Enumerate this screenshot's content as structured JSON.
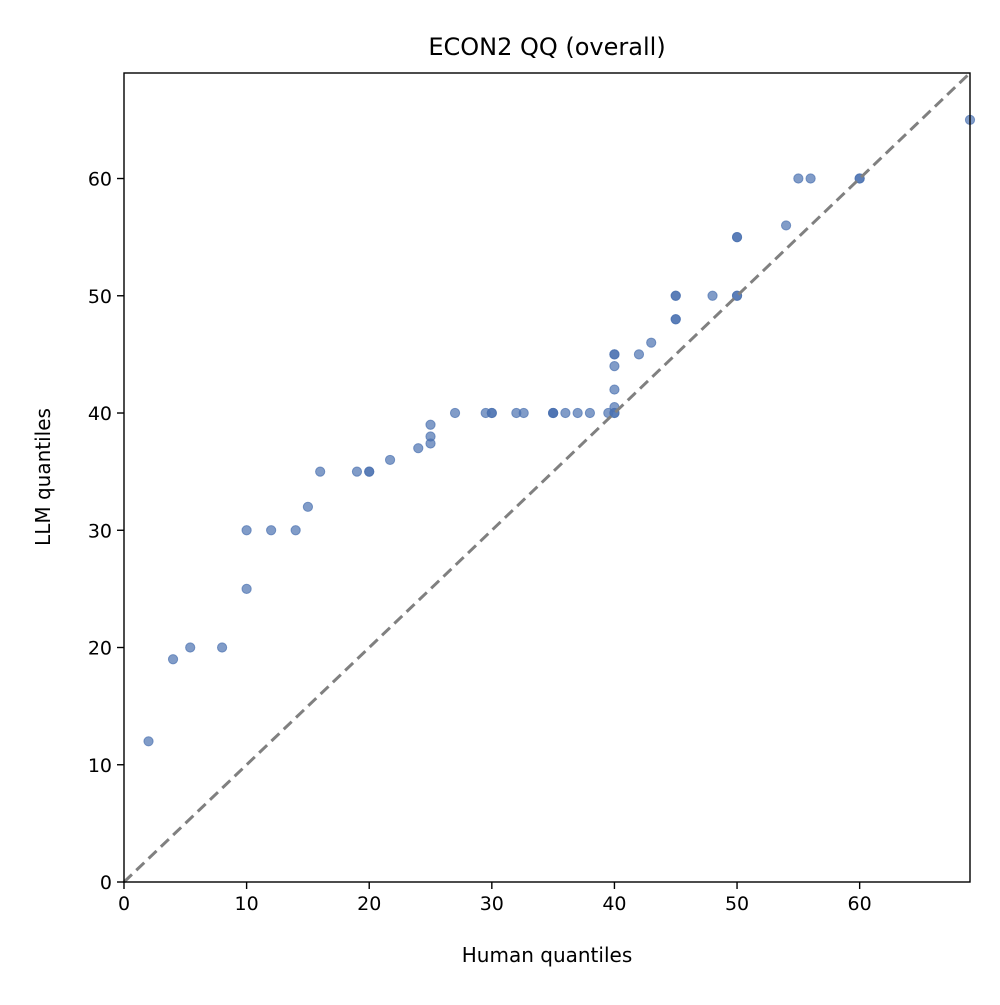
{
  "chart_data": {
    "type": "scatter",
    "title": "ECON2 QQ (overall)",
    "xlabel": "Human quantiles",
    "ylabel": "LLM quantiles",
    "xlim": [
      0,
      69
    ],
    "ylim": [
      0,
      69
    ],
    "xticks": [
      0,
      10,
      20,
      30,
      40,
      50,
      60
    ],
    "yticks": [
      0,
      10,
      20,
      30,
      40,
      50,
      60
    ],
    "grid": false,
    "point_color": "#4c72b0",
    "reference_line": {
      "style": "dashed",
      "color": "#808080",
      "from": [
        0,
        0
      ],
      "to": [
        69,
        69
      ]
    },
    "points": [
      [
        2,
        12
      ],
      [
        4,
        19
      ],
      [
        5.4,
        20
      ],
      [
        8,
        20
      ],
      [
        10,
        25
      ],
      [
        10,
        30
      ],
      [
        12,
        30
      ],
      [
        14,
        30
      ],
      [
        15,
        32
      ],
      [
        16,
        35
      ],
      [
        19,
        35
      ],
      [
        20,
        35
      ],
      [
        20,
        35
      ],
      [
        21.7,
        36
      ],
      [
        24,
        37
      ],
      [
        25,
        37.4
      ],
      [
        25,
        38
      ],
      [
        25,
        39
      ],
      [
        27,
        40
      ],
      [
        29.5,
        40
      ],
      [
        30,
        40
      ],
      [
        30,
        40
      ],
      [
        32,
        40
      ],
      [
        32.6,
        40
      ],
      [
        35,
        40
      ],
      [
        35,
        40
      ],
      [
        35,
        40
      ],
      [
        36,
        40
      ],
      [
        37,
        40
      ],
      [
        38,
        40
      ],
      [
        39.5,
        40
      ],
      [
        40,
        40
      ],
      [
        40,
        40
      ],
      [
        40,
        40.5
      ],
      [
        40,
        42
      ],
      [
        40,
        44
      ],
      [
        40,
        45
      ],
      [
        40,
        45
      ],
      [
        42,
        45
      ],
      [
        43,
        46
      ],
      [
        45,
        48
      ],
      [
        45,
        48
      ],
      [
        45,
        50
      ],
      [
        45,
        50
      ],
      [
        48,
        50
      ],
      [
        50,
        50
      ],
      [
        50,
        50
      ],
      [
        50,
        55
      ],
      [
        50,
        55
      ],
      [
        54,
        56
      ],
      [
        55,
        60
      ],
      [
        56,
        60
      ],
      [
        60,
        60
      ],
      [
        60,
        60
      ],
      [
        69,
        65
      ]
    ]
  }
}
